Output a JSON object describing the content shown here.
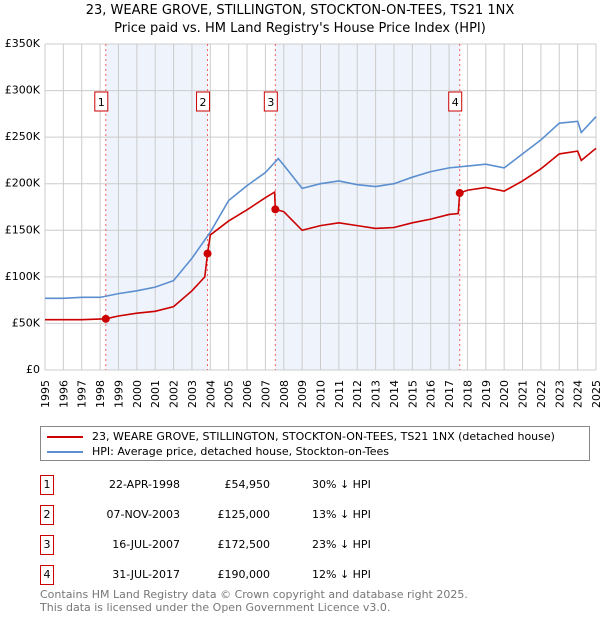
{
  "title_line1": "23, WEARE GROVE, STILLINGTON, STOCKTON-ON-TEES, TS21 1NX",
  "title_line2": "Price paid vs. HM Land Registry's House Price Index (HPI)",
  "colors": {
    "property": "#cc0000",
    "hpi": "#5b8fd0",
    "shade": "#eef3fc"
  },
  "chart_data": {
    "type": "line",
    "xlim": [
      1995,
      2025
    ],
    "ylim": [
      0,
      350000
    ],
    "yticks": [
      0,
      50000,
      100000,
      150000,
      200000,
      250000,
      300000,
      350000
    ],
    "ytick_labels": [
      "£0",
      "£50K",
      "£100K",
      "£150K",
      "£200K",
      "£250K",
      "£300K",
      "£350K"
    ],
    "xticks": [
      1995,
      1996,
      1997,
      1998,
      1999,
      2000,
      2001,
      2002,
      2003,
      2004,
      2005,
      2006,
      2007,
      2008,
      2009,
      2010,
      2011,
      2012,
      2013,
      2014,
      2015,
      2016,
      2017,
      2018,
      2019,
      2020,
      2021,
      2022,
      2023,
      2024,
      2025
    ],
    "grid": true,
    "shaded_ranges": [
      [
        1998.31,
        2003.85
      ],
      [
        2007.54,
        2017.58
      ]
    ],
    "series": [
      {
        "name": "23, WEARE GROVE, STILLINGTON, STOCKTON-ON-TEES, TS21 1NX (detached house)",
        "color": "#cc0000",
        "x": [
          1995,
          1996,
          1997,
          1998.31,
          1999,
          2000,
          2001,
          2002,
          2003,
          2003.7,
          2003.85,
          2004,
          2005,
          2006,
          2007,
          2007.5,
          2007.54,
          2008,
          2009,
          2010,
          2011,
          2012,
          2013,
          2014,
          2015,
          2016,
          2017,
          2017.5,
          2017.58,
          2018,
          2019,
          2020,
          2021,
          2022,
          2023,
          2024,
          2024.2,
          2025
        ],
        "y": [
          54000,
          54000,
          54000,
          54950,
          58000,
          61000,
          63000,
          68000,
          85000,
          100000,
          125000,
          145000,
          160000,
          172000,
          185000,
          191000,
          172500,
          170000,
          150000,
          155000,
          158000,
          155000,
          152000,
          153000,
          158000,
          162000,
          167000,
          168000,
          190000,
          193000,
          196000,
          192000,
          203000,
          216000,
          232000,
          235000,
          225000,
          238000
        ]
      },
      {
        "name": "HPI: Average price, detached house, Stockton-on-Tees",
        "color": "#5b8fd0",
        "x": [
          1995,
          1996,
          1997,
          1998,
          1999,
          2000,
          2001,
          2002,
          2003,
          2004,
          2005,
          2006,
          2007,
          2007.7,
          2008,
          2009,
          2010,
          2011,
          2012,
          2013,
          2014,
          2015,
          2016,
          2017,
          2018,
          2019,
          2020,
          2021,
          2022,
          2023,
          2024,
          2024.2,
          2025
        ],
        "y": [
          77000,
          77000,
          78000,
          78000,
          82000,
          85000,
          89000,
          96000,
          120000,
          148000,
          182000,
          198000,
          212000,
          227000,
          220000,
          195000,
          200000,
          203000,
          199000,
          197000,
          200000,
          207000,
          213000,
          217000,
          219000,
          221000,
          217000,
          232000,
          247000,
          265000,
          267000,
          255000,
          272000
        ]
      }
    ],
    "sales": [
      {
        "id": "1",
        "x": 1998.31,
        "date": "22-APR-1998",
        "price": 54950,
        "price_label": "£54,950",
        "hpi_diff": "30% ↓ HPI"
      },
      {
        "id": "2",
        "x": 2003.85,
        "date": "07-NOV-2003",
        "price": 125000,
        "price_label": "£125,000",
        "hpi_diff": "13% ↓ HPI"
      },
      {
        "id": "3",
        "x": 2007.54,
        "date": "16-JUL-2007",
        "price": 172500,
        "price_label": "£172,500",
        "hpi_diff": "23% ↓ HPI"
      },
      {
        "id": "4",
        "x": 2017.58,
        "date": "31-JUL-2017",
        "price": 190000,
        "price_label": "£190,000",
        "hpi_diff": "12% ↓ HPI"
      }
    ]
  },
  "legend": {
    "property": "23, WEARE GROVE, STILLINGTON, STOCKTON-ON-TEES, TS21 1NX (detached house)",
    "hpi": "HPI: Average price, detached house, Stockton-on-Tees"
  },
  "footer_line1": "Contains HM Land Registry data © Crown copyright and database right 2025.",
  "footer_line2": "This data is licensed under the Open Government Licence v3.0."
}
